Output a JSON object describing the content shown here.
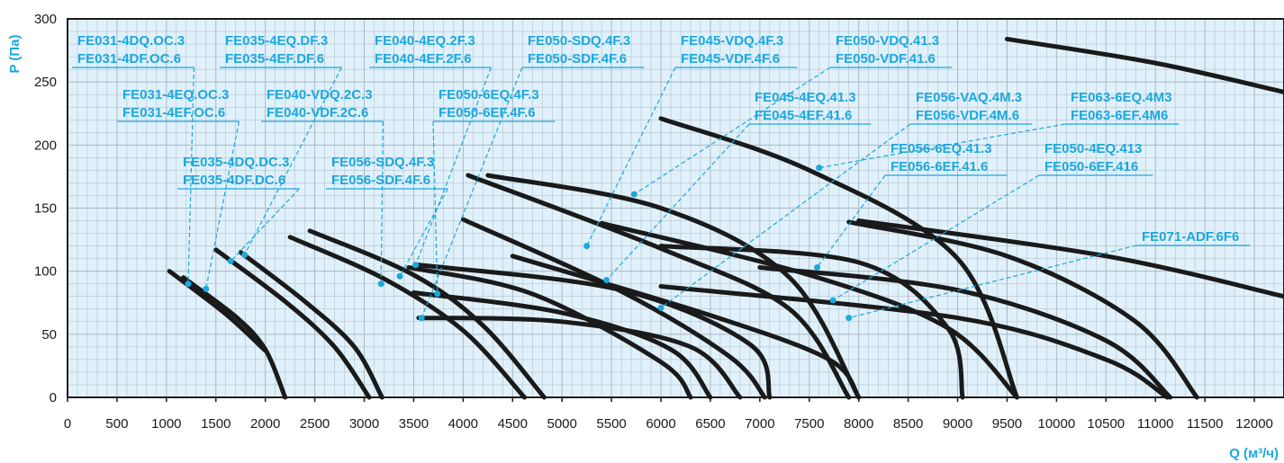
{
  "chart_data": {
    "type": "line",
    "xlabel": "Q (м³/ч)",
    "ylabel": "P (Па)",
    "xlim": [
      0,
      12300
    ],
    "ylim": [
      0,
      300
    ],
    "x_ticks": [
      0,
      500,
      1000,
      1500,
      2000,
      2500,
      3000,
      3500,
      4000,
      4500,
      5000,
      5500,
      6000,
      6500,
      7000,
      7500,
      8000,
      8500,
      9000,
      9500,
      10000,
      10500,
      11000,
      11500,
      12000
    ],
    "y_ticks": [
      0,
      50,
      100,
      150,
      200,
      250,
      300
    ],
    "grid": true,
    "background": "#e1f1fb",
    "curve_color": "#1a1a1a",
    "label_color": "#1ba8df",
    "series": [
      {
        "x": [
          1030,
          1600,
          2000
        ],
        "y": [
          100,
          66,
          37
        ]
      },
      {
        "x": [
          1170,
          1700,
          2000,
          2200
        ],
        "y": [
          95,
          64,
          38,
          0
        ]
      },
      {
        "x": [
          1500,
          2200,
          2700,
          3050
        ],
        "y": [
          117,
          76,
          40,
          0
        ]
      },
      {
        "x": [
          1750,
          2400,
          2900,
          3180
        ],
        "y": [
          115,
          76,
          40,
          0
        ]
      },
      {
        "x": [
          2250,
          3200,
          4000,
          4620
        ],
        "y": [
          127,
          94,
          53,
          0
        ]
      },
      {
        "x": [
          2450,
          3500,
          4200,
          4820
        ],
        "y": [
          132,
          97,
          57,
          0
        ]
      },
      {
        "x": [
          3450,
          4700,
          6000,
          6300
        ],
        "y": [
          103,
          82,
          28,
          0
        ]
      },
      {
        "x": [
          3500,
          5000,
          6100,
          6500
        ],
        "y": [
          83,
          67,
          38,
          0
        ]
      },
      {
        "x": [
          3550,
          5000,
          6300,
          6800
        ],
        "y": [
          63,
          60,
          40,
          0
        ]
      },
      {
        "x": [
          3550,
          5600,
          6900,
          7100
        ],
        "y": [
          105,
          85,
          42,
          0
        ]
      },
      {
        "x": [
          4000,
          5600,
          6700,
          7050
        ],
        "y": [
          141,
          84,
          32,
          0
        ]
      },
      {
        "x": [
          4050,
          6000,
          7300,
          7900
        ],
        "y": [
          176,
          118,
          70,
          0
        ]
      },
      {
        "x": [
          4250,
          6000,
          7300,
          8000
        ],
        "y": [
          176,
          150,
          95,
          0
        ]
      },
      {
        "x": [
          4500,
          6500,
          7700,
          8000
        ],
        "y": [
          112,
          65,
          30,
          0
        ]
      },
      {
        "x": [
          5400,
          7500,
          8900,
          9600
        ],
        "y": [
          138,
          97,
          55,
          0
        ]
      },
      {
        "x": [
          6000,
          8000,
          8900,
          9050
        ],
        "y": [
          120,
          107,
          55,
          0
        ]
      },
      {
        "x": [
          6000,
          7500,
          9000,
          9600
        ],
        "y": [
          221,
          180,
          110,
          0
        ]
      },
      {
        "x": [
          6000,
          9000,
          10500,
          11120
        ],
        "y": [
          88,
          63,
          30,
          0
        ]
      },
      {
        "x": [
          7000,
          9000,
          10500,
          11150
        ],
        "y": [
          103,
          85,
          45,
          0
        ]
      },
      {
        "x": [
          7900,
          9500,
          10800,
          11420
        ],
        "y": [
          139,
          112,
          60,
          0
        ]
      },
      {
        "x": [
          9500,
          11000,
          12300
        ],
        "y": [
          284,
          265,
          242
        ]
      },
      {
        "x": [
          8000,
          10500,
          12300
        ],
        "y": [
          140,
          112,
          80
        ]
      }
    ],
    "annotations": [
      {
        "lines": [
          "FE031-4DQ.OC.3",
          "FE031-4DF.OC.6"
        ],
        "point": [
          1220,
          90
        ]
      },
      {
        "lines": [
          "FE031-4EQ.OC.3",
          "FE031-4EF.OC.6"
        ],
        "point": [
          1400,
          86
        ]
      },
      {
        "lines": [
          "FE035-4DQ.DC.3",
          "FE035-4DF.DC.6"
        ],
        "point": [
          1650,
          108
        ]
      },
      {
        "lines": [
          "FE035-4EQ.DF.3",
          "FE035-4EF.DF.6"
        ],
        "point": [
          1790,
          113
        ]
      },
      {
        "lines": [
          "FE040-VDQ.2C.3",
          "FE040-VDF.2C.6"
        ],
        "point": [
          3170,
          90
        ]
      },
      {
        "lines": [
          "FE056-SDQ.4F.3",
          "FE056-SDF.4F.6"
        ],
        "point": [
          3360,
          96
        ]
      },
      {
        "lines": [
          "FE040-4EQ.2F.3",
          "FE040-4EF.2F.6"
        ],
        "point": [
          3520,
          105
        ]
      },
      {
        "lines": [
          "FE050-SDQ.4F.3",
          "FE050-SDF.4F.6"
        ],
        "point": [
          3580,
          63
        ]
      },
      {
        "lines": [
          "FE050-6EQ.4F.3",
          "FE050-6EF.4F.6"
        ],
        "point": [
          3740,
          82
        ]
      },
      {
        "lines": [
          "FE045-VDQ.4F.3",
          "FE045-VDF.4F.6"
        ],
        "point": [
          5250,
          120
        ]
      },
      {
        "lines": [
          "FE045-4EQ.41.3",
          "FE045-4EF.41.6"
        ],
        "point": [
          5450,
          93
        ]
      },
      {
        "lines": [
          "FE050-VDQ.41.3",
          "FE050-VDF.41.6"
        ],
        "point": [
          5730,
          161
        ]
      },
      {
        "lines": [
          "FE056-VAQ.4M.3",
          "FE056-VDF.4M.6"
        ],
        "point": [
          6000,
          71
        ]
      },
      {
        "lines": [
          "FE063-6EQ.4M3",
          "FE063-6EF.4M6"
        ],
        "point": [
          7600,
          182
        ]
      },
      {
        "lines": [
          "FE056-6EQ.41.3",
          "FE056-6EF.41.6"
        ],
        "point": [
          7580,
          103
        ]
      },
      {
        "lines": [
          "FE050-4EQ.413",
          "FE050-6EF.416"
        ],
        "point": [
          7740,
          77
        ]
      },
      {
        "lines": [
          "FE071-ADF.6F6"
        ],
        "point": [
          7900,
          63
        ]
      }
    ]
  }
}
